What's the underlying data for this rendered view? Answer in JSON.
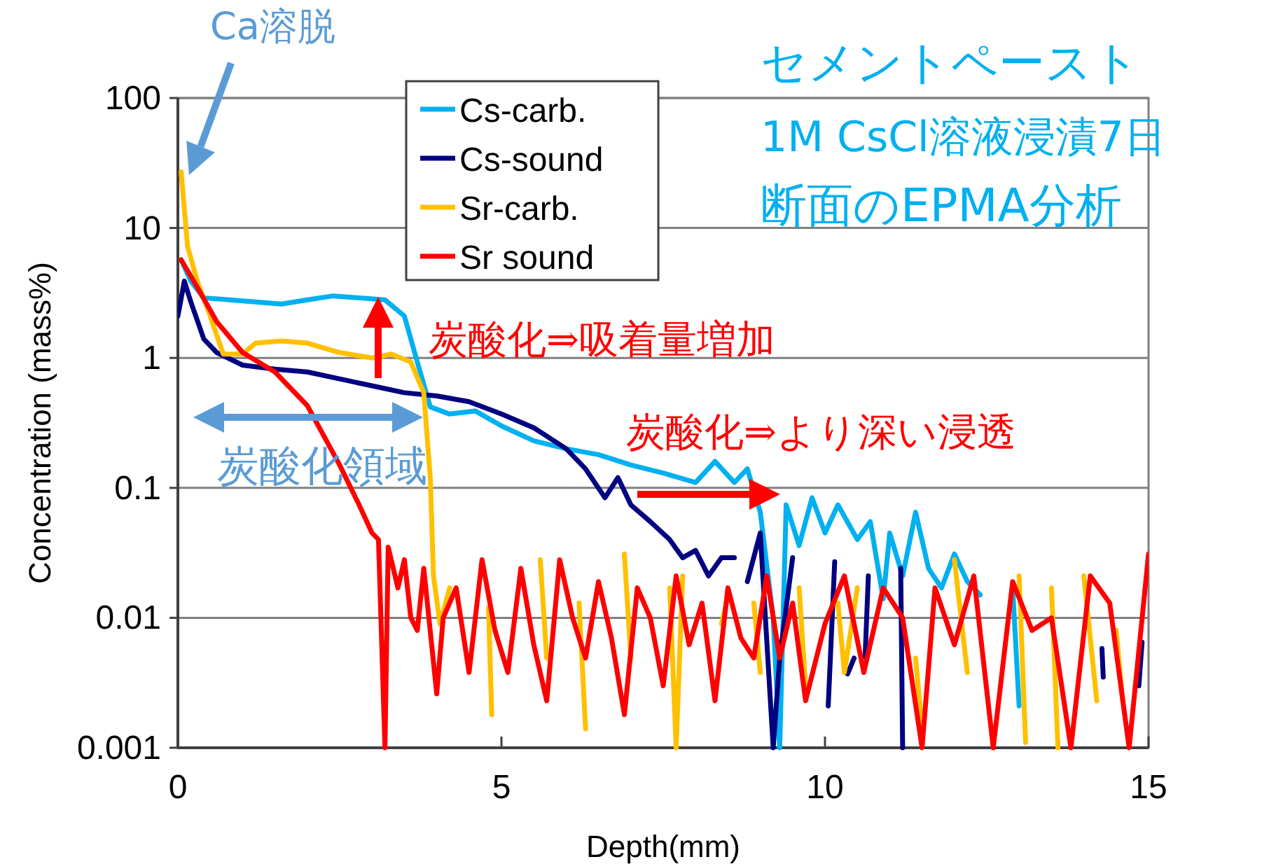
{
  "chart_data": {
    "type": "line",
    "title": "セメントペースト",
    "subtitle": "1M CsCl溶液浸漬7日",
    "xlabel": "Depth(mm)",
    "ylabel": "Concentration (mass%)",
    "log": "y",
    "grid": "y",
    "legend": "top",
    "marker": "none",
    "line_style": "solid",
    "xlim": [
      0,
      15
    ],
    "xticks": [
      0,
      5,
      10,
      15
    ],
    "ylim": [
      0.001,
      100
    ],
    "yticks": [
      0.001,
      0.01,
      0.1,
      1,
      10,
      100
    ],
    "annotations": [
      "断面のEPMA分析",
      "Ca溶脱",
      "炭酸化⇒吸着量増加",
      "炭酸化⇒より深い浸透",
      "炭酸化領域"
    ],
    "series": [
      {
        "name": "Cs-carb.",
        "color": "#00b0f0",
        "x": [
          0.05,
          0.2,
          0.4,
          0.8,
          1.2,
          1.6,
          2.0,
          2.4,
          2.8,
          3.2,
          3.5,
          3.7,
          3.9,
          4.2,
          4.6,
          5.0,
          5.5,
          6.0,
          6.5,
          7.0,
          7.5,
          8.0,
          8.3,
          8.6,
          8.8,
          9.0,
          9.2,
          9.3,
          9.4,
          9.6,
          9.8,
          10.0,
          10.2,
          10.5,
          10.7,
          10.9,
          11.0,
          11.2,
          11.4,
          11.6,
          11.8,
          12.0,
          12.2,
          12.4,
          12.6,
          12.9,
          13.0
        ],
        "values": [
          5.7,
          3.9,
          2.9,
          2.8,
          2.7,
          2.6,
          2.8,
          3.0,
          2.9,
          2.8,
          2.1,
          0.93,
          0.42,
          0.37,
          0.39,
          0.3,
          0.23,
          0.2,
          0.18,
          0.15,
          0.13,
          0.11,
          0.16,
          0.11,
          0.14,
          0.065,
          0.01,
          0.001,
          0.074,
          0.036,
          0.084,
          0.045,
          0.074,
          0.04,
          0.055,
          0.014,
          0.045,
          0.021,
          0.065,
          0.024,
          0.017,
          0.031,
          0.019,
          0.015,
          null,
          0.017,
          0.0021
        ]
      },
      {
        "name": "Cs-sound",
        "color": "#000080",
        "x": [
          0.0,
          0.1,
          0.2,
          0.4,
          0.6,
          1.0,
          1.5,
          2.0,
          2.5,
          3.0,
          3.5,
          4.0,
          4.5,
          5.0,
          5.5,
          6.0,
          6.3,
          6.6,
          6.8,
          7.0,
          7.3,
          7.6,
          7.8,
          8.0,
          8.2,
          8.4,
          8.6,
          8.7,
          8.8,
          9.0,
          9.2,
          9.3,
          9.5,
          9.7,
          10.05,
          10.15,
          10.25,
          10.35,
          10.45,
          10.55,
          10.62,
          10.67,
          10.9,
          11.17,
          11.2,
          11.3,
          14.28,
          14.3,
          14.5,
          14.85,
          14.9
        ],
        "values": [
          2.1,
          3.9,
          2.7,
          1.4,
          1.1,
          0.88,
          0.82,
          0.78,
          0.69,
          0.61,
          0.54,
          0.51,
          0.46,
          0.37,
          0.29,
          0.2,
          0.14,
          0.084,
          0.12,
          0.074,
          0.055,
          0.04,
          0.029,
          0.033,
          0.021,
          0.029,
          0.029,
          null,
          0.019,
          0.045,
          0.001,
          0.0049,
          0.029,
          null,
          0.0021,
          0.027,
          null,
          0.0037,
          0.0049,
          null,
          0.005,
          0.021,
          null,
          0.024,
          0.001,
          null,
          0.0058,
          0.0035,
          null,
          0.003,
          0.0065
        ]
      },
      {
        "name": "Sr-carb.",
        "color": "#ffc000",
        "x": [
          0.05,
          0.15,
          0.3,
          0.5,
          0.7,
          1.0,
          1.2,
          1.6,
          2.0,
          2.5,
          3.0,
          3.3,
          3.6,
          3.8,
          3.9,
          3.95,
          4.05,
          4.2,
          4.4,
          4.8,
          4.85,
          4.9,
          5.6,
          5.7,
          5.8,
          6.2,
          6.3,
          6.5,
          6.9,
          7.0,
          7.2,
          7.6,
          7.7,
          7.8,
          8.0,
          8.4,
          8.48,
          8.55,
          8.9,
          9.0,
          9.1,
          9.6,
          9.7,
          9.8,
          10.2,
          10.3,
          10.5,
          10.6,
          11.4,
          11.5,
          11.6,
          12.0,
          12.2,
          12.3,
          13.0,
          13.1,
          13.2,
          13.5,
          13.6,
          13.7,
          14.0,
          14.2,
          14.3,
          14.5,
          14.6
        ],
        "values": [
          27,
          7.2,
          3.9,
          2.1,
          1.07,
          1.07,
          1.3,
          1.35,
          1.3,
          1.1,
          1.0,
          1.07,
          0.93,
          0.54,
          0.12,
          0.021,
          0.009,
          0.017,
          null,
          0.012,
          0.0018,
          null,
          0.028,
          0.0049,
          null,
          0.013,
          0.0014,
          null,
          0.031,
          0.0049,
          null,
          0.017,
          0.001,
          0.021,
          null,
          0.009,
          0.013,
          null,
          0.013,
          0.0038,
          null,
          0.017,
          0.003,
          null,
          0.013,
          0.0038,
          0.017,
          null,
          0.0049,
          0.0014,
          null,
          0.028,
          0.0038,
          null,
          0.021,
          0.0011,
          null,
          0.017,
          0.001,
          null,
          0.021,
          0.0023,
          null,
          0.008,
          0.0023
        ]
      },
      {
        "name": "Sr sound",
        "color": "#ff0000",
        "x": [
          0.05,
          0.3,
          0.6,
          1.0,
          1.5,
          2.0,
          2.5,
          2.8,
          3.0,
          3.1,
          3.2,
          3.25,
          3.4,
          3.5,
          3.6,
          3.7,
          3.8,
          4.0,
          4.1,
          4.3,
          4.5,
          4.7,
          4.9,
          5.1,
          5.3,
          5.5,
          5.7,
          5.9,
          6.1,
          6.3,
          6.5,
          6.7,
          6.9,
          7.1,
          7.3,
          7.5,
          7.7,
          7.9,
          8.1,
          8.3,
          8.5,
          8.7,
          8.9,
          9.1,
          9.3,
          9.5,
          9.7,
          10.0,
          10.3,
          10.6,
          10.9,
          11.2,
          11.5,
          11.7,
          12.0,
          12.3,
          12.6,
          12.9,
          13.2,
          13.5,
          13.8,
          14.1,
          14.4,
          14.7,
          15.0
        ],
        "values": [
          5.7,
          3.5,
          1.9,
          1.1,
          0.78,
          0.43,
          0.15,
          0.074,
          0.045,
          0.04,
          0.001,
          0.035,
          0.017,
          0.028,
          0.01,
          0.008,
          0.024,
          0.0026,
          0.01,
          0.017,
          0.0038,
          0.028,
          0.008,
          0.0038,
          0.024,
          0.0062,
          0.0023,
          0.028,
          0.01,
          0.0049,
          0.019,
          0.007,
          0.0018,
          0.017,
          0.01,
          0.003,
          0.021,
          0.0062,
          0.013,
          0.0023,
          0.017,
          0.007,
          0.0049,
          0.021,
          0.0049,
          0.013,
          0.0023,
          0.009,
          0.021,
          0.0038,
          0.017,
          0.01,
          0.001,
          0.017,
          0.0062,
          0.021,
          0.001,
          0.019,
          0.008,
          0.01,
          0.001,
          0.021,
          0.013,
          0.001,
          0.031
        ]
      }
    ]
  }
}
